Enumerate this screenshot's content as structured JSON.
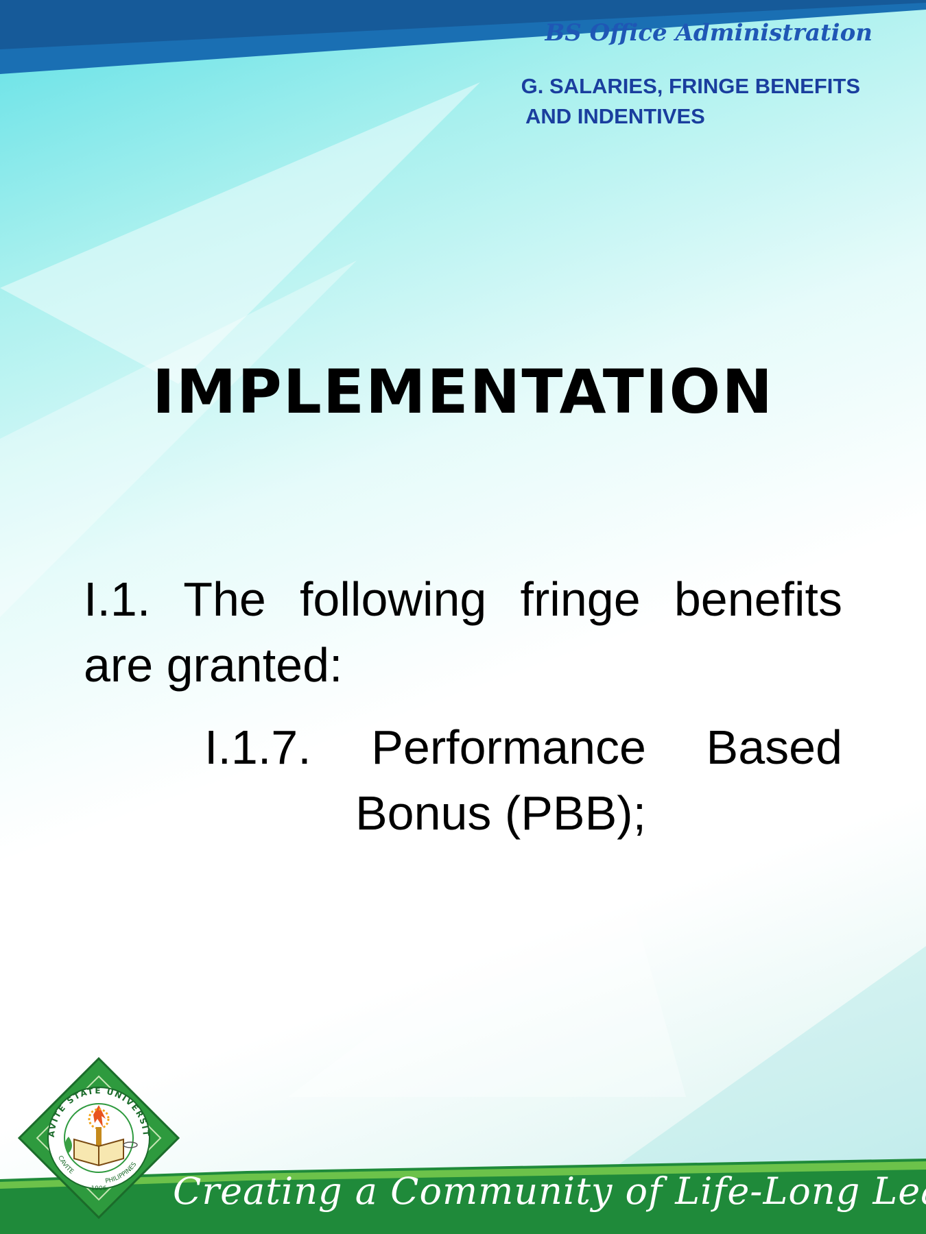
{
  "header": {
    "program_title": "BS Office Administration",
    "section_line1": "G. SALARIES, FRINGE BENEFITS",
    "section_line2": "AND INDENTIVES"
  },
  "main": {
    "title": "IMPLEMENTATION",
    "item_1": {
      "number": "I.1.",
      "words": [
        "The",
        "following",
        "fringe"
      ],
      "continuation": "benefits are granted:"
    },
    "item_1_7": {
      "number": "I.1.7.",
      "words": [
        "Performance",
        "Based"
      ],
      "continuation": "Bonus (PBB);"
    }
  },
  "footer": {
    "tagline": "Creating a Community of Life-Long Learners",
    "logo": {
      "top_text": "CAVITE STATE UNIVERSITY",
      "bottom_left_text": "CAVITE",
      "bottom_right_text": "PHILIPPINES",
      "year": "1906"
    }
  },
  "colors": {
    "header_blue": "#1f57b5",
    "footer_green": "#1f8a3a",
    "logo_green": "#2e9a3e",
    "text": "#000000"
  }
}
